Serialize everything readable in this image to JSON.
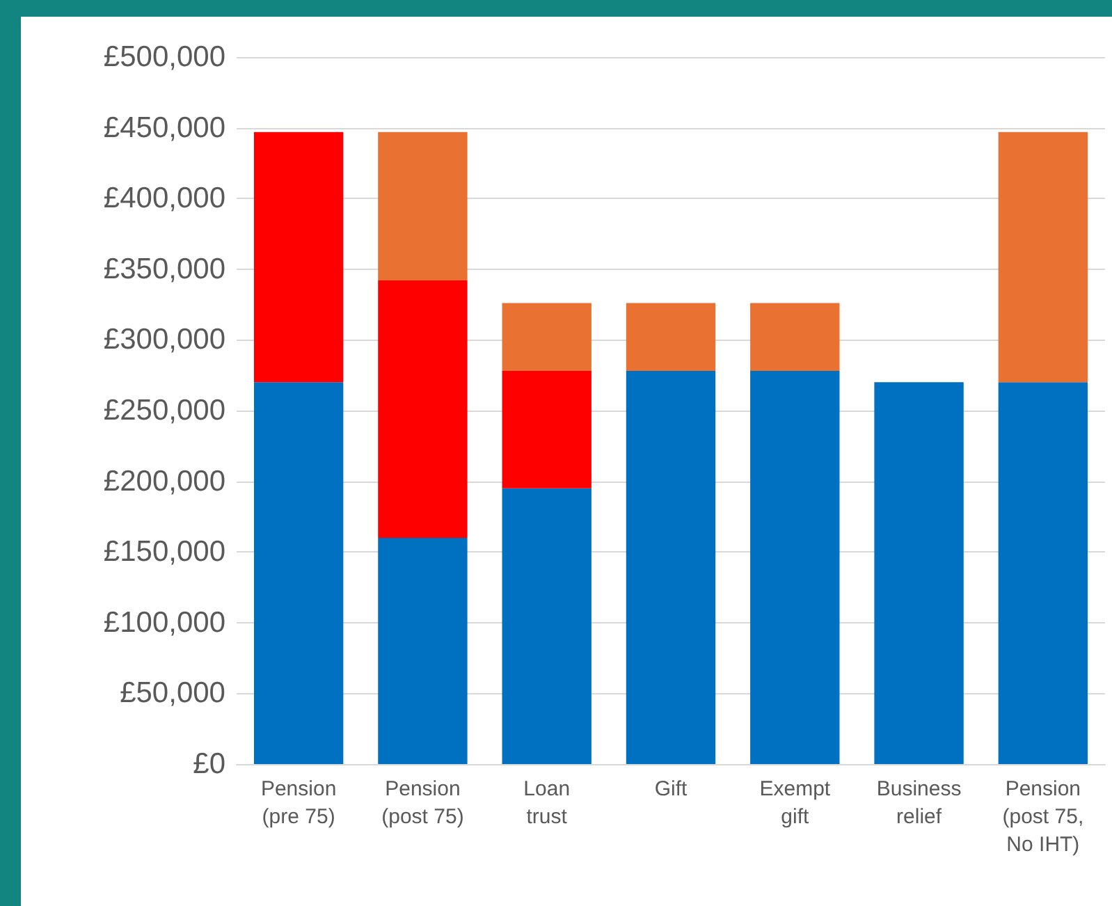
{
  "chart_data": {
    "type": "bar",
    "stacked": true,
    "categories": [
      "Pension\n(pre 75)",
      "Pension\n(post 75)",
      "Loan\ntrust",
      "Gift",
      "Exempt\ngift",
      "Business\nrelief",
      "Pension\n(post 75,\nNo IHT)"
    ],
    "series": [
      {
        "color": "#0070c0",
        "values": [
          270000,
          160000,
          195000,
          278000,
          278000,
          270000,
          270000
        ]
      },
      {
        "color": "#ff0000",
        "values": [
          177000,
          182000,
          83000,
          0,
          0,
          0,
          0
        ]
      },
      {
        "color": "#e97132",
        "values": [
          0,
          105000,
          48000,
          48000,
          48000,
          0,
          177000
        ]
      }
    ],
    "ylim": [
      0,
      500000
    ],
    "yticks": [
      {
        "value": 0,
        "label": "£0"
      },
      {
        "value": 50000,
        "label": "£50,000"
      },
      {
        "value": 100000,
        "label": "£100,000"
      },
      {
        "value": 150000,
        "label": "£150,000"
      },
      {
        "value": 200000,
        "label": "£200,000"
      },
      {
        "value": 250000,
        "label": "£250,000"
      },
      {
        "value": 300000,
        "label": "£300,000"
      },
      {
        "value": 350000,
        "label": "£350,000"
      },
      {
        "value": 400000,
        "label": "£400,000"
      },
      {
        "value": 450000,
        "label": "£450,000"
      },
      {
        "value": 500000,
        "label": "£500,000"
      }
    ],
    "grid": true
  }
}
